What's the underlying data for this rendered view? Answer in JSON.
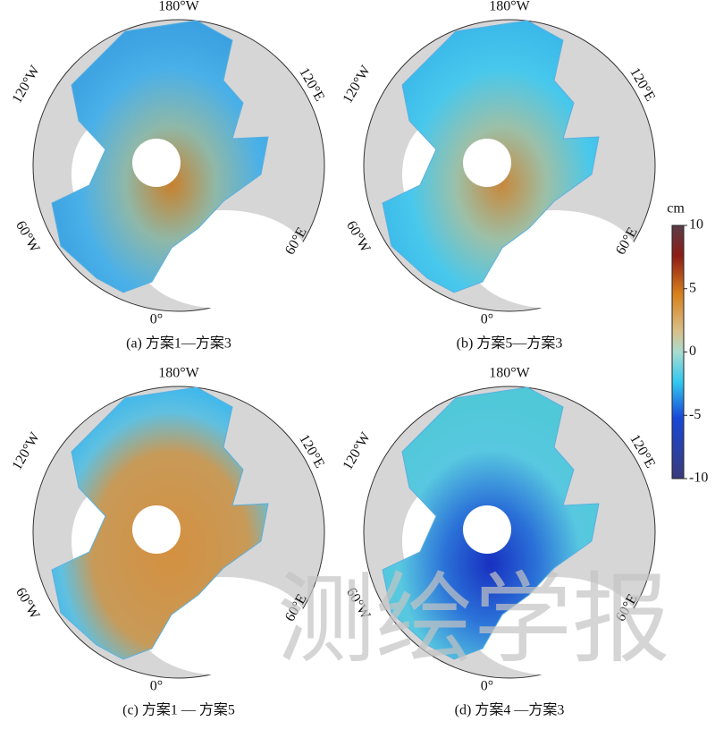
{
  "panels": [
    {
      "caption": "(a) 方案1—方案3",
      "labels": {
        "top": "180°W",
        "upper_left": "120°W",
        "upper_right": "120°E",
        "lower_left": "60°W",
        "lower_right": "60°E",
        "bottom": "0°"
      }
    },
    {
      "caption": "(b) 方案5—方案3",
      "labels": {
        "top": "180°W",
        "upper_left": "120°W",
        "upper_right": "120°E",
        "lower_left": "60°W",
        "lower_right": "60°E",
        "bottom": "0°"
      }
    },
    {
      "caption": "(c) 方案1 — 方案5",
      "labels": {
        "top": "180°W",
        "upper_left": "120°W",
        "upper_right": "120°E",
        "lower_left": "60°W",
        "lower_right": "60°E",
        "bottom": "0°"
      }
    },
    {
      "caption": "(d) 方案4 —方案3",
      "labels": {
        "top": "180°W",
        "upper_left": "120°W",
        "upper_right": "120°E",
        "lower_left": "60°W",
        "lower_right": "60°E",
        "bottom": "0°"
      }
    }
  ],
  "colorbar": {
    "unit": "cm",
    "range": [
      -10,
      10
    ],
    "ticks": [
      10,
      5,
      0,
      -5,
      -10
    ]
  },
  "watermark": "测绘学报"
}
